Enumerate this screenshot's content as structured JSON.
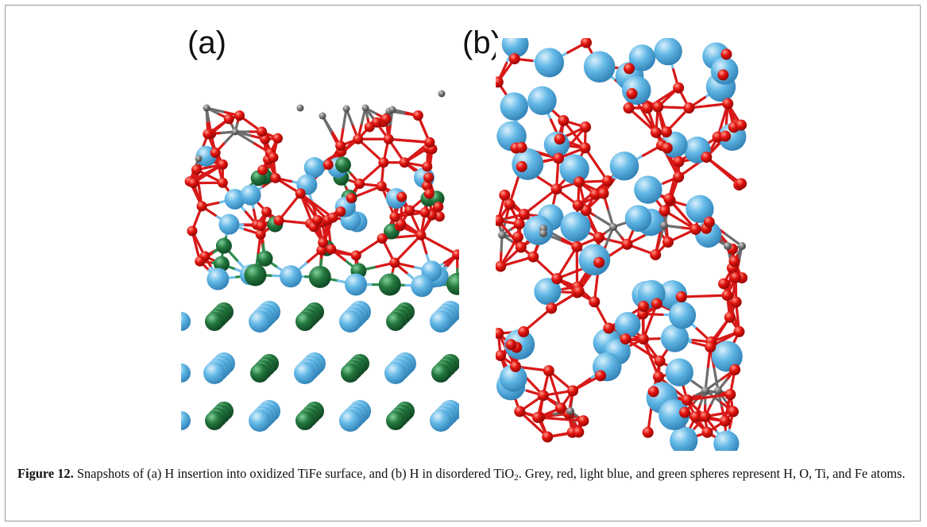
{
  "figure": {
    "label_a": "(a)",
    "label_b": "(b)",
    "caption_label": "Figure 12.",
    "caption_text_1": " Snapshots of (a) H insertion into oxidized TiFe surface, and (b) H in disordered TiO",
    "caption_sub": "2",
    "caption_text_2": ". Grey, red, light blue, and green spheres represent H, O, Ti, and Fe atoms."
  },
  "colors": {
    "H": "#7a7a7a",
    "O": "#e0140f",
    "Ti": "#5cb4e4",
    "Fe": "#237a43",
    "bond_ti": "#74c0ea",
    "bond_fe": "#2e8b4d",
    "bond_o": "#d81818",
    "bond_h": "#6d6d6d"
  }
}
